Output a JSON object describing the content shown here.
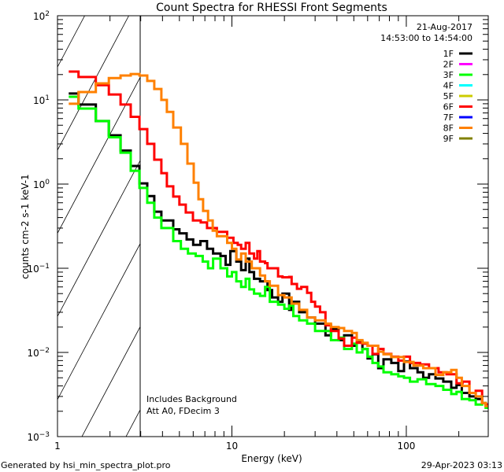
{
  "chart_data": {
    "type": "line",
    "title": "Count Spectra for RHESSI Front Segments",
    "xlabel": "Energy (keV)",
    "ylabel": "counts cm-2 s-1 keV-1",
    "xscale": "log",
    "yscale": "log",
    "xlim": [
      1,
      295
    ],
    "ylim": [
      0.001,
      100
    ],
    "x_tick_labels": [
      "1",
      "10",
      "100"
    ],
    "y_tick_labels": [
      {
        "base": "10",
        "exp": "2"
      },
      {
        "base": "10",
        "exp": "1"
      },
      {
        "base": "10",
        "exp": "0"
      },
      {
        "base": "10",
        "exp": "-1"
      },
      {
        "base": "10",
        "exp": "-2"
      },
      {
        "base": "10",
        "exp": "-3"
      }
    ],
    "grid": false,
    "date": "21-Aug-2017",
    "time_range": "14:53:00 to 14:54:00",
    "hatched_region_keV": [
      1,
      3
    ],
    "annotations": [
      "Includes Background",
      "Att A0, FDecim 3"
    ],
    "footer_left": "Generated by hsi_min_spectra_plot.pro",
    "footer_right": "29-Apr-2023 03:13",
    "legend_position": "top-right",
    "legend": [
      {
        "name": "1F",
        "color": "#000000"
      },
      {
        "name": "2F",
        "color": "#ff00ff"
      },
      {
        "name": "3F",
        "color": "#00ff00"
      },
      {
        "name": "4F",
        "color": "#00ffff"
      },
      {
        "name": "5F",
        "color": "#cccc00"
      },
      {
        "name": "6F",
        "color": "#ff0000"
      },
      {
        "name": "7F",
        "color": "#0000ff"
      },
      {
        "name": "8F",
        "color": "#ff8000"
      },
      {
        "name": "9F",
        "color": "#808000"
      }
    ],
    "series": [
      {
        "name": "1F",
        "color": "#000000",
        "points": [
          [
            1.16,
            11.9
          ],
          [
            1.32,
            8.8
          ],
          [
            1.66,
            5.6
          ],
          [
            1.97,
            3.8
          ],
          [
            2.3,
            2.5
          ],
          [
            2.63,
            1.64
          ],
          [
            2.95,
            1.02
          ],
          [
            3.27,
            0.72
          ],
          [
            3.59,
            0.47
          ],
          [
            3.94,
            0.37
          ],
          [
            4.61,
            0.29
          ],
          [
            5.0,
            0.26
          ],
          [
            5.5,
            0.22
          ],
          [
            6.0,
            0.19
          ],
          [
            6.6,
            0.21
          ],
          [
            7.2,
            0.17
          ],
          [
            7.8,
            0.15
          ],
          [
            8.6,
            0.14
          ],
          [
            9.2,
            0.11
          ],
          [
            9.8,
            0.16
          ],
          [
            10.6,
            0.12
          ],
          [
            11.3,
            0.095
          ],
          [
            12.0,
            0.13
          ],
          [
            12.6,
            0.09
          ],
          [
            13.4,
            0.075
          ],
          [
            14.5,
            0.07
          ],
          [
            16,
            0.055
          ],
          [
            17,
            0.045
          ],
          [
            18.4,
            0.04
          ],
          [
            19.5,
            0.05
          ],
          [
            21.3,
            0.032
          ],
          [
            22,
            0.04
          ],
          [
            24.3,
            0.03
          ],
          [
            27,
            0.026
          ],
          [
            30,
            0.022
          ],
          [
            34.4,
            0.016
          ],
          [
            37,
            0.019
          ],
          [
            40.9,
            0.014
          ],
          [
            44,
            0.016
          ],
          [
            48.8,
            0.012
          ],
          [
            52,
            0.0135
          ],
          [
            56,
            0.011
          ],
          [
            60,
            0.0085
          ],
          [
            64,
            0.0095
          ],
          [
            69,
            0.0065
          ],
          [
            74,
            0.0083
          ],
          [
            82,
            0.0075
          ],
          [
            90,
            0.006
          ],
          [
            97,
            0.0078
          ],
          [
            105,
            0.0065
          ],
          [
            116,
            0.0058
          ],
          [
            125,
            0.005
          ],
          [
            135,
            0.0055
          ],
          [
            147,
            0.0049
          ],
          [
            163,
            0.0045
          ],
          [
            181,
            0.0038
          ],
          [
            194,
            0.0041
          ],
          [
            208,
            0.0033
          ],
          [
            230,
            0.003
          ],
          [
            250,
            0.0028
          ],
          [
            272,
            0.0025
          ],
          [
            285,
            0.0024
          ]
        ]
      },
      {
        "name": "3F",
        "color": "#00ff00",
        "points": [
          [
            1.16,
            10.9
          ],
          [
            1.32,
            7.9
          ],
          [
            1.66,
            5.6
          ],
          [
            1.97,
            3.6
          ],
          [
            2.3,
            2.36
          ],
          [
            2.63,
            1.44
          ],
          [
            2.95,
            0.9
          ],
          [
            3.27,
            0.6
          ],
          [
            3.59,
            0.4
          ],
          [
            3.94,
            0.3
          ],
          [
            4.61,
            0.21
          ],
          [
            5.1,
            0.17
          ],
          [
            5.6,
            0.15
          ],
          [
            6.2,
            0.14
          ],
          [
            6.8,
            0.12
          ],
          [
            7.3,
            0.1
          ],
          [
            7.8,
            0.13
          ],
          [
            8.6,
            0.1
          ],
          [
            9.4,
            0.08
          ],
          [
            10,
            0.09
          ],
          [
            10.6,
            0.07
          ],
          [
            11.3,
            0.06
          ],
          [
            12,
            0.075
          ],
          [
            12.6,
            0.056
          ],
          [
            13.4,
            0.05
          ],
          [
            14.5,
            0.047
          ],
          [
            15.5,
            0.06
          ],
          [
            16.5,
            0.04
          ],
          [
            18.4,
            0.037
          ],
          [
            20,
            0.033
          ],
          [
            21.3,
            0.036
          ],
          [
            22.5,
            0.027
          ],
          [
            24.3,
            0.024
          ],
          [
            27,
            0.022
          ],
          [
            30,
            0.018
          ],
          [
            34.4,
            0.018
          ],
          [
            37,
            0.014
          ],
          [
            40.9,
            0.015
          ],
          [
            44,
            0.011
          ],
          [
            48.8,
            0.0127
          ],
          [
            52,
            0.01
          ],
          [
            56,
            0.011
          ],
          [
            60,
            0.0089
          ],
          [
            64,
            0.0075
          ],
          [
            69,
            0.0068
          ],
          [
            74,
            0.0058
          ],
          [
            82,
            0.0055
          ],
          [
            90,
            0.0052
          ],
          [
            97,
            0.005
          ],
          [
            105,
            0.0045
          ],
          [
            116,
            0.0048
          ],
          [
            130,
            0.0042
          ],
          [
            147,
            0.004
          ],
          [
            163,
            0.0036
          ],
          [
            181,
            0.0032
          ],
          [
            194,
            0.0034
          ],
          [
            208,
            0.0028
          ],
          [
            230,
            0.0027
          ],
          [
            250,
            0.0024
          ],
          [
            272,
            0.0025
          ],
          [
            285,
            0.0022
          ]
        ]
      },
      {
        "name": "6F",
        "color": "#ff0000",
        "points": [
          [
            1.16,
            21.7
          ],
          [
            1.32,
            18.7
          ],
          [
            1.66,
            15
          ],
          [
            1.97,
            11.6
          ],
          [
            2.3,
            8.8
          ],
          [
            2.63,
            6.3
          ],
          [
            2.95,
            4.5
          ],
          [
            3.27,
            3.0
          ],
          [
            3.59,
            1.95
          ],
          [
            3.94,
            1.35
          ],
          [
            4.24,
            0.94
          ],
          [
            4.61,
            0.71
          ],
          [
            5.0,
            0.57
          ],
          [
            5.44,
            0.46
          ],
          [
            5.98,
            0.37
          ],
          [
            6.63,
            0.35
          ],
          [
            7.2,
            0.3
          ],
          [
            8.2,
            0.27
          ],
          [
            8.6,
            0.27
          ],
          [
            9.4,
            0.23
          ],
          [
            10.2,
            0.2
          ],
          [
            10.8,
            0.19
          ],
          [
            11.3,
            0.17
          ],
          [
            12,
            0.2
          ],
          [
            12.6,
            0.15
          ],
          [
            13.4,
            0.13
          ],
          [
            14,
            0.16
          ],
          [
            14.5,
            0.12
          ],
          [
            15.5,
            0.115
          ],
          [
            16,
            0.1
          ],
          [
            17,
            0.1
          ],
          [
            18.4,
            0.08
          ],
          [
            19.5,
            0.078
          ],
          [
            21.3,
            0.079
          ],
          [
            22,
            0.065
          ],
          [
            23.6,
            0.057
          ],
          [
            25,
            0.06
          ],
          [
            27,
            0.051
          ],
          [
            28.5,
            0.04
          ],
          [
            30,
            0.035
          ],
          [
            32,
            0.03
          ],
          [
            34.4,
            0.021
          ],
          [
            37,
            0.018
          ],
          [
            40.9,
            0.0146
          ],
          [
            44,
            0.012
          ],
          [
            48.8,
            0.015
          ],
          [
            52,
            0.013
          ],
          [
            56,
            0.0127
          ],
          [
            60,
            0.012
          ],
          [
            64,
            0.0096
          ],
          [
            69,
            0.011
          ],
          [
            74,
            0.0096
          ],
          [
            82,
            0.0089
          ],
          [
            90,
            0.008
          ],
          [
            97,
            0.0089
          ],
          [
            105,
            0.0075
          ],
          [
            120,
            0.0072
          ],
          [
            135,
            0.0065
          ],
          [
            153,
            0.0058
          ],
          [
            170,
            0.0055
          ],
          [
            194,
            0.0043
          ],
          [
            210,
            0.0045
          ],
          [
            230,
            0.0033
          ],
          [
            250,
            0.0035
          ],
          [
            272,
            0.0025
          ],
          [
            285,
            0.0024
          ]
        ]
      },
      {
        "name": "8F",
        "color": "#ff8000",
        "points": [
          [
            1.16,
            9
          ],
          [
            1.32,
            12.4
          ],
          [
            1.66,
            15.7
          ],
          [
            1.97,
            18.2
          ],
          [
            2.3,
            19.5
          ],
          [
            2.63,
            20.3
          ],
          [
            2.95,
            19.5
          ],
          [
            3.27,
            16.8
          ],
          [
            3.59,
            13.5
          ],
          [
            3.94,
            10
          ],
          [
            4.24,
            7.2
          ],
          [
            4.61,
            4.7
          ],
          [
            5.1,
            3.0
          ],
          [
            5.56,
            1.75
          ],
          [
            6.04,
            1.04
          ],
          [
            6.43,
            0.66
          ],
          [
            6.84,
            0.48
          ],
          [
            7.3,
            0.37
          ],
          [
            7.76,
            0.28
          ],
          [
            8.2,
            0.24
          ],
          [
            8.6,
            0.24
          ],
          [
            9.4,
            0.2
          ],
          [
            10,
            0.17
          ],
          [
            10.6,
            0.127
          ],
          [
            11.3,
            0.15
          ],
          [
            12,
            0.12
          ],
          [
            13,
            0.1
          ],
          [
            14.5,
            0.082
          ],
          [
            15.5,
            0.07
          ],
          [
            16.5,
            0.062
          ],
          [
            18.4,
            0.048
          ],
          [
            20,
            0.045
          ],
          [
            22,
            0.038
          ],
          [
            24.3,
            0.032
          ],
          [
            27,
            0.026
          ],
          [
            30,
            0.024
          ],
          [
            34.4,
            0.022
          ],
          [
            37,
            0.02
          ],
          [
            40.9,
            0.0195
          ],
          [
            44,
            0.018
          ],
          [
            48.8,
            0.017
          ],
          [
            52,
            0.014
          ],
          [
            56,
            0.013
          ],
          [
            60,
            0.012
          ],
          [
            69,
            0.0102
          ],
          [
            74,
            0.0095
          ],
          [
            82,
            0.0088
          ],
          [
            97,
            0.0077
          ],
          [
            110,
            0.007
          ],
          [
            125,
            0.0065
          ],
          [
            147,
            0.0054
          ],
          [
            163,
            0.0058
          ],
          [
            181,
            0.0062
          ],
          [
            194,
            0.005
          ],
          [
            208,
            0.004
          ],
          [
            230,
            0.0033
          ],
          [
            250,
            0.003
          ],
          [
            272,
            0.0025
          ],
          [
            285,
            0.0023
          ]
        ]
      }
    ]
  }
}
